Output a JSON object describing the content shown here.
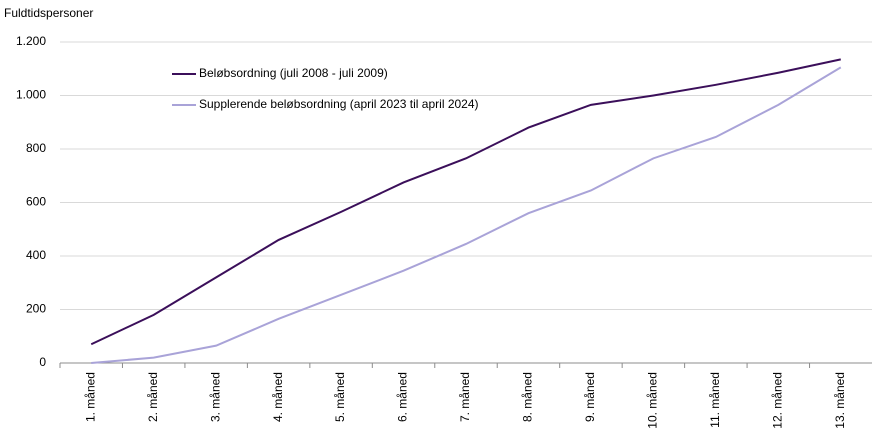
{
  "chart_data": {
    "type": "line",
    "y_label": "Fuldtidspersoner",
    "categories": [
      "1. måned",
      "2. måned",
      "3. måned",
      "4. måned",
      "5. måned",
      "6. måned",
      "7. måned",
      "8. måned",
      "9. måned",
      "10. måned",
      "11. måned",
      "12. måned",
      "13. måned"
    ],
    "series": [
      {
        "name": "Beløbsordning (juli 2008 - juli 2009)",
        "color": "#3b0f5a",
        "values": [
          70,
          180,
          320,
          460,
          565,
          675,
          765,
          880,
          965,
          1000,
          1040,
          1085,
          1135
        ]
      },
      {
        "name": "Supplerende beløbsordning (april 2023 til april 2024)",
        "color": "#a9a3d8",
        "values": [
          0,
          20,
          65,
          165,
          255,
          345,
          445,
          560,
          645,
          765,
          845,
          965,
          1105
        ]
      }
    ],
    "ylim": [
      0,
      1200
    ],
    "yticks": [
      0,
      200,
      400,
      600,
      800,
      {
        "value": 1000,
        "label": "1.000"
      },
      {
        "value": 1200,
        "label": "1.200"
      }
    ],
    "grid": true,
    "legend": "upper left"
  }
}
